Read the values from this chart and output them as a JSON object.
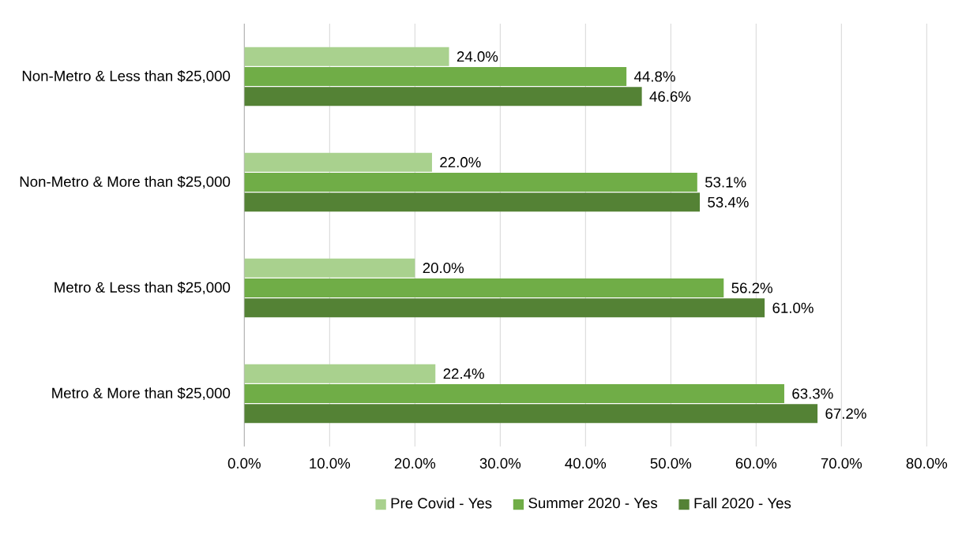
{
  "chart_data": {
    "type": "bar",
    "orientation": "horizontal",
    "categories": [
      "Non-Metro & Less than $25,000",
      "Non-Metro & More than $25,000",
      "Metro & Less than $25,000",
      "Metro & More than $25,000"
    ],
    "series": [
      {
        "name": "Pre Covid - Yes",
        "color": "#a9d18e",
        "values": [
          24.0,
          22.0,
          20.0,
          22.4
        ],
        "value_labels": [
          "24.0%",
          "22.0%",
          "20.0%",
          "22.4%"
        ]
      },
      {
        "name": "Summer 2020 - Yes",
        "color": "#70ad47",
        "values": [
          44.8,
          53.1,
          56.2,
          63.3
        ],
        "value_labels": [
          "44.8%",
          "53.1%",
          "56.2%",
          "63.3%"
        ]
      },
      {
        "name": "Fall 2020 - Yes",
        "color": "#548235",
        "values": [
          46.6,
          53.4,
          61.0,
          67.2
        ],
        "value_labels": [
          "46.6%",
          "53.4%",
          "61.0%",
          "67.2%"
        ]
      }
    ],
    "xlim": [
      0,
      80
    ],
    "xticks": [
      {
        "value": 0,
        "label": "0.0%"
      },
      {
        "value": 10,
        "label": "10.0%"
      },
      {
        "value": 20,
        "label": "20.0%"
      },
      {
        "value": 30,
        "label": "30.0%"
      },
      {
        "value": 40,
        "label": "40.0%"
      },
      {
        "value": 50,
        "label": "50.0%"
      },
      {
        "value": 60,
        "label": "60.0%"
      },
      {
        "value": 70,
        "label": "70.0%"
      },
      {
        "value": 80,
        "label": "80.0%"
      }
    ],
    "grid": "x",
    "legend": "bottom"
  }
}
